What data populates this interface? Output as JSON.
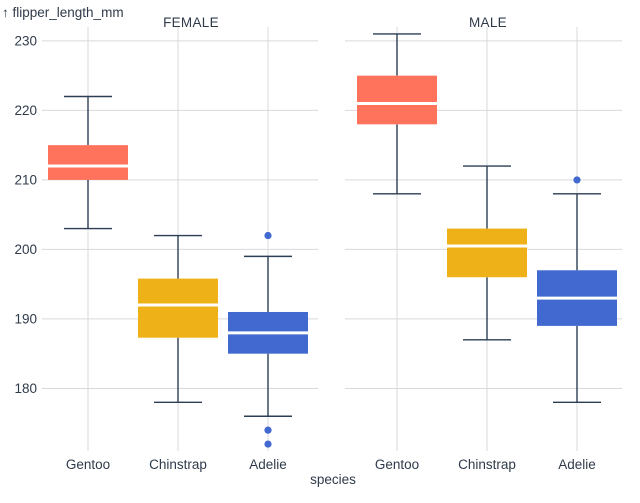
{
  "chart_data": {
    "type": "boxplot",
    "y_axis_label": "↑ flipper_length_mm",
    "x_axis_label": "species",
    "ylim": [
      171,
      232
    ],
    "y_ticks": [
      180,
      190,
      200,
      210,
      220,
      230
    ],
    "categories": [
      "Gentoo",
      "Chinstrap",
      "Adelie"
    ],
    "colors": {
      "Gentoo": "#ff725c",
      "Chinstrap": "#efb118",
      "Adelie": "#4269d0"
    },
    "panels": [
      {
        "title": "FEMALE",
        "boxes": [
          {
            "species": "Gentoo",
            "min": 203,
            "q1": 210,
            "median": 212,
            "q3": 215,
            "max": 222,
            "outliers": []
          },
          {
            "species": "Chinstrap",
            "min": 178,
            "q1": 187.3,
            "median": 192,
            "q3": 195.8,
            "max": 202,
            "outliers": []
          },
          {
            "species": "Adelie",
            "min": 176,
            "q1": 185,
            "median": 188,
            "q3": 191,
            "max": 199,
            "outliers": [
              202,
              174,
              172
            ]
          }
        ]
      },
      {
        "title": "MALE",
        "boxes": [
          {
            "species": "Gentoo",
            "min": 208,
            "q1": 218,
            "median": 221,
            "q3": 225,
            "max": 231,
            "outliers": []
          },
          {
            "species": "Chinstrap",
            "min": 187,
            "q1": 196,
            "median": 200.5,
            "q3": 203,
            "max": 212,
            "outliers": []
          },
          {
            "species": "Adelie",
            "min": 178,
            "q1": 189,
            "median": 193,
            "q3": 197,
            "max": 208,
            "outliers": [
              210
            ]
          }
        ]
      }
    ]
  }
}
